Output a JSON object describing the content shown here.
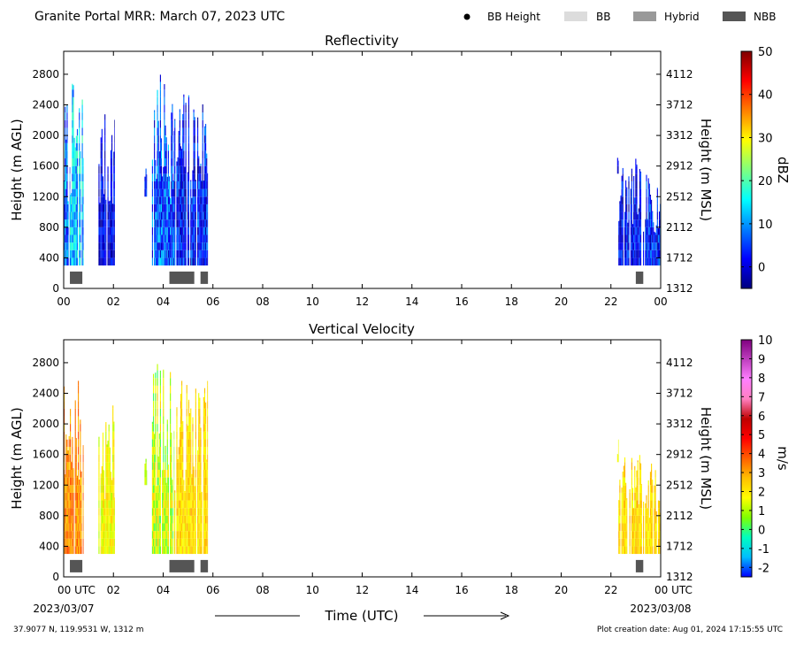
{
  "header": {
    "title": "Granite Portal MRR:  March 07, 2023 UTC",
    "legend": [
      {
        "label": "BB Height",
        "symbol": "dot",
        "color": "#000000"
      },
      {
        "label": "BB",
        "symbol": "rect",
        "color": "#dcdcdc"
      },
      {
        "label": "Hybrid",
        "symbol": "rect",
        "color": "#999999"
      },
      {
        "label": "NBB",
        "symbol": "rect",
        "color": "#555555"
      }
    ]
  },
  "footer": {
    "location": "37.9077 N, 119.9531 W, 1312 m",
    "created": "Plot creation date: Aug 01, 2024 17:15:55 UTC",
    "xlabel": "Time (UTC)",
    "start_date": "2023/03/07",
    "end_date": "2023/03/08"
  },
  "colors": {
    "nbb": "#555555"
  },
  "chart_data": [
    {
      "type": "heatmap",
      "title": "Reflectivity",
      "ylabel": "Height (m AGL)",
      "y2label": "Height (m MSL)",
      "cbar_label": "dBZ",
      "xlim": [
        0,
        24
      ],
      "ylim": [
        0,
        3100
      ],
      "x_ticks": [
        "00",
        "02",
        "04",
        "06",
        "08",
        "10",
        "12",
        "14",
        "16",
        "18",
        "20",
        "22",
        "00"
      ],
      "y_ticks": [
        0,
        400,
        800,
        1200,
        1600,
        2000,
        2400,
        2800
      ],
      "y2_ticks": [
        1312,
        1712,
        2112,
        2512,
        2912,
        3312,
        3712,
        4112
      ],
      "cbar_range": [
        -5,
        50
      ],
      "cbar_ticks": [
        0,
        10,
        20,
        30,
        40,
        50
      ],
      "colormap": [
        "#00007f",
        "#0000ff",
        "#007fff",
        "#00ffff",
        "#7fff7f",
        "#ffff00",
        "#ff7f00",
        "#ff0000",
        "#7f0000"
      ],
      "echo_columns": [
        {
          "t0": 0.0,
          "t1": 0.25,
          "base": 300,
          "top": 2500,
          "vmin": 0,
          "vmax": 15
        },
        {
          "t0": 0.25,
          "t1": 0.8,
          "base": 300,
          "top": 2700,
          "vmin": 5,
          "vmax": 20
        },
        {
          "t0": 1.4,
          "t1": 2.05,
          "base": 300,
          "top": 2300,
          "vmin": -4,
          "vmax": 6
        },
        {
          "t0": 3.25,
          "t1": 3.35,
          "base": 1200,
          "top": 1700,
          "vmin": -2,
          "vmax": 8
        },
        {
          "t0": 3.55,
          "t1": 4.45,
          "base": 300,
          "top": 2800,
          "vmin": -2,
          "vmax": 14
        },
        {
          "t0": 4.45,
          "t1": 5.8,
          "base": 300,
          "top": 2600,
          "vmin": -4,
          "vmax": 10
        },
        {
          "t0": 22.25,
          "t1": 22.3,
          "base": 1500,
          "top": 1800,
          "vmin": -3,
          "vmax": 3
        },
        {
          "t0": 22.3,
          "t1": 23.25,
          "base": 300,
          "top": 1700,
          "vmin": -4,
          "vmax": 8
        },
        {
          "t0": 23.25,
          "t1": 24.0,
          "base": 300,
          "top": 1500,
          "vmin": -3,
          "vmax": 10
        }
      ],
      "bright_band": [
        {
          "t0": 0.25,
          "t1": 0.75,
          "class": "NBB"
        },
        {
          "t0": 4.25,
          "t1": 5.25,
          "class": "NBB"
        },
        {
          "t0": 5.5,
          "t1": 5.8,
          "class": "NBB"
        },
        {
          "t0": 23.0,
          "t1": 23.3,
          "class": "NBB"
        }
      ]
    },
    {
      "type": "heatmap",
      "title": "Vertical Velocity",
      "ylabel": "Height (m AGL)",
      "y2label": "Height (m MSL)",
      "cbar_label": "m/s",
      "xlim": [
        0,
        24
      ],
      "ylim": [
        0,
        3100
      ],
      "x_ticks": [
        "00 UTC",
        "02",
        "04",
        "06",
        "08",
        "10",
        "12",
        "14",
        "16",
        "18",
        "20",
        "22",
        "00 UTC"
      ],
      "y_ticks": [
        0,
        400,
        800,
        1200,
        1600,
        2000,
        2400,
        2800
      ],
      "y2_ticks": [
        1312,
        1712,
        2112,
        2512,
        2912,
        3312,
        3712,
        4112
      ],
      "cbar_range": [
        -2.5,
        10
      ],
      "cbar_ticks": [
        -2,
        -1,
        0,
        1,
        2,
        3,
        4,
        5,
        6,
        7,
        8,
        9,
        10
      ],
      "colormap": [
        "#0000ff",
        "#00bfff",
        "#00ffbf",
        "#7fff00",
        "#ffff00",
        "#ffbf00",
        "#ff5f00",
        "#ff0000",
        "#bf0000",
        "#ff7fbf",
        "#ff7fff",
        "#bf3fbf",
        "#800080"
      ],
      "echo_columns": [
        {
          "t0": 0.0,
          "t1": 0.25,
          "base": 300,
          "top": 2500,
          "vmin": 2.5,
          "vmax": 4
        },
        {
          "t0": 0.25,
          "t1": 0.8,
          "base": 300,
          "top": 2700,
          "vmin": 2.5,
          "vmax": 4
        },
        {
          "t0": 1.4,
          "t1": 2.05,
          "base": 300,
          "top": 2300,
          "vmin": 1,
          "vmax": 2.5
        },
        {
          "t0": 3.25,
          "t1": 3.35,
          "base": 1200,
          "top": 1700,
          "vmin": 0.5,
          "vmax": 1.5
        },
        {
          "t0": 3.55,
          "t1": 4.45,
          "base": 300,
          "top": 2800,
          "vmin": 0,
          "vmax": 2.5
        },
        {
          "t0": 4.45,
          "t1": 5.8,
          "base": 300,
          "top": 2600,
          "vmin": 1.5,
          "vmax": 3
        },
        {
          "t0": 22.25,
          "t1": 22.3,
          "base": 1500,
          "top": 1800,
          "vmin": 1,
          "vmax": 1.8
        },
        {
          "t0": 22.3,
          "t1": 23.25,
          "base": 300,
          "top": 1700,
          "vmin": 1.5,
          "vmax": 3
        },
        {
          "t0": 23.25,
          "t1": 24.0,
          "base": 300,
          "top": 1500,
          "vmin": 1.5,
          "vmax": 3
        }
      ],
      "bright_band": [
        {
          "t0": 0.25,
          "t1": 0.75,
          "class": "NBB"
        },
        {
          "t0": 4.25,
          "t1": 5.25,
          "class": "NBB"
        },
        {
          "t0": 5.5,
          "t1": 5.8,
          "class": "NBB"
        },
        {
          "t0": 23.0,
          "t1": 23.3,
          "class": "NBB"
        }
      ]
    }
  ]
}
